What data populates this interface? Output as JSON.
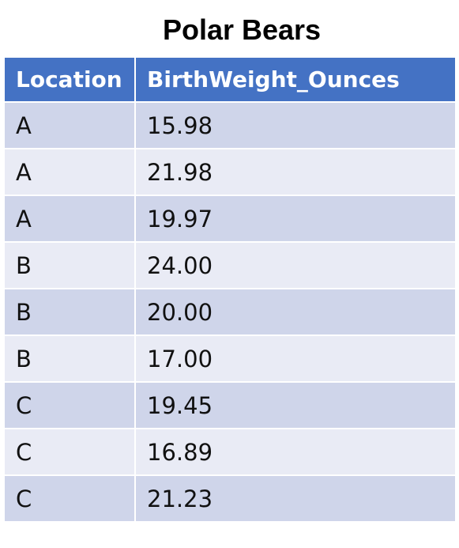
{
  "title": "Polar Bears",
  "table": {
    "headers": [
      "Location",
      "BirthWeight_Ounces"
    ],
    "rows": [
      [
        "A",
        "15.98"
      ],
      [
        "A",
        "21.98"
      ],
      [
        "A",
        "19.97"
      ],
      [
        "B",
        "24.00"
      ],
      [
        "B",
        "20.00"
      ],
      [
        "B",
        "17.00"
      ],
      [
        "C",
        "19.45"
      ],
      [
        "C",
        "16.89"
      ],
      [
        "C",
        "21.23"
      ]
    ]
  }
}
